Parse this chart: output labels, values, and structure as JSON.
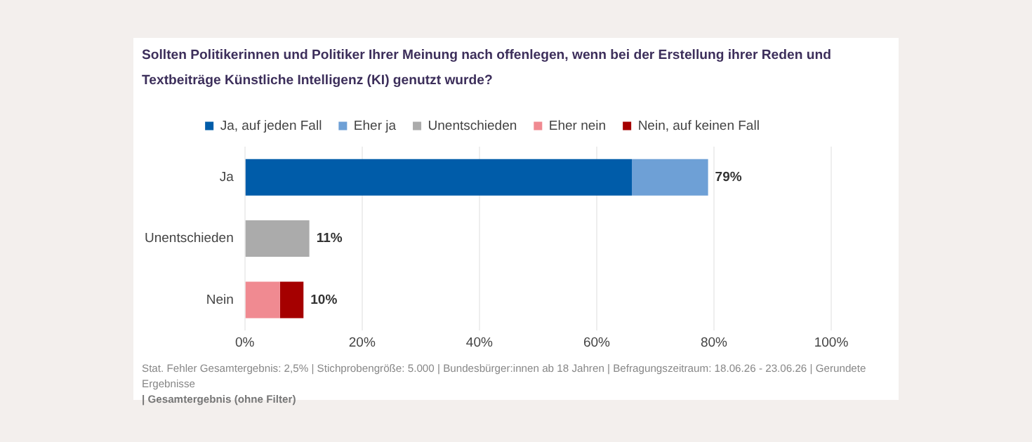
{
  "chart_data": {
    "type": "bar",
    "orientation": "horizontal",
    "stacked": true,
    "title": "Sollten Politikerinnen und Politiker Ihrer Meinung nach offenlegen, wenn bei der Erstellung ihrer Reden und Textbeiträge Künstliche Intelligenz (KI) genutzt wurde?",
    "categories": [
      "Ja",
      "Unentschieden",
      "Nein"
    ],
    "series": [
      {
        "name": "Ja, auf jeden Fall",
        "color": "#005ca9",
        "values": [
          66,
          null,
          null
        ]
      },
      {
        "name": "Eher ja",
        "color": "#6ea0d6",
        "values": [
          13,
          null,
          null
        ]
      },
      {
        "name": "Unentschieden",
        "color": "#ababab",
        "values": [
          null,
          11,
          null
        ]
      },
      {
        "name": "Eher nein",
        "color": "#f08a91",
        "values": [
          null,
          null,
          6
        ]
      },
      {
        "name": "Nein, auf keinen Fall",
        "color": "#a50000",
        "values": [
          null,
          null,
          4
        ]
      }
    ],
    "totals": [
      "79%",
      "11%",
      "10%"
    ],
    "xlim": [
      0,
      100
    ],
    "xticks": [
      {
        "value": 0,
        "label": "0%"
      },
      {
        "value": 20,
        "label": "20%"
      },
      {
        "value": 40,
        "label": "40%"
      },
      {
        "value": 60,
        "label": "60%"
      },
      {
        "value": 80,
        "label": "80%"
      },
      {
        "value": 100,
        "label": "100%"
      }
    ],
    "grid": "x",
    "legend": "top",
    "annotations": [
      "Stat. Fehler Gesamtergebnis: 2,5% | Stichprobengröße: 5.000 | Bundesbürger:innen ab 18 Jahren | Befragungszeitraum: 18.06.26 - 23.06.26 | Gerundete Ergebnisse",
      "| Gesamtergebnis (ohne Filter)"
    ]
  }
}
